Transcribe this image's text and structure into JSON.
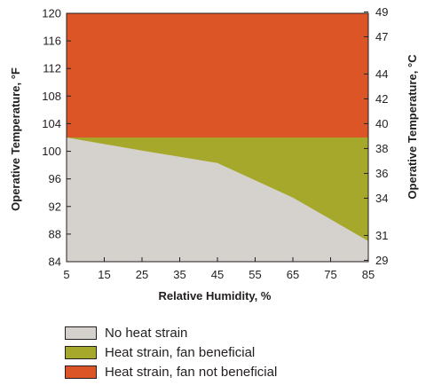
{
  "chart_data": {
    "type": "area",
    "xlabel": "Relative Humidity, %",
    "ylabel": "Operative Temperature, °F",
    "y2label": "Operative Temperature, °C",
    "xlim": [
      5,
      85
    ],
    "ylim": [
      84,
      120
    ],
    "xticks": [
      5,
      15,
      25,
      35,
      45,
      55,
      65,
      75,
      85
    ],
    "yticks": [
      84,
      88,
      92,
      96,
      100,
      104,
      108,
      112,
      116,
      120
    ],
    "y2ticks": [
      {
        "label": "29",
        "value_f": 84.2
      },
      {
        "label": "31",
        "value_f": 87.8
      },
      {
        "label": "34",
        "value_f": 93.2
      },
      {
        "label": "36",
        "value_f": 96.8
      },
      {
        "label": "38",
        "value_f": 100.4
      },
      {
        "label": "40",
        "value_f": 104.0
      },
      {
        "label": "42",
        "value_f": 107.6
      },
      {
        "label": "44",
        "value_f": 111.2
      },
      {
        "label": "47",
        "value_f": 116.6
      },
      {
        "label": "49",
        "value_f": 120.2
      }
    ],
    "grid": false,
    "legend_position": "bottom-left",
    "regions": [
      {
        "name": "No heat strain",
        "color": "#d5d2cd",
        "boundary": [
          {
            "x": 5,
            "y": 102.0
          },
          {
            "x": 25,
            "y": 100.1
          },
          {
            "x": 45,
            "y": 98.3
          },
          {
            "x": 65,
            "y": 93.3
          },
          {
            "x": 85,
            "y": 87.0
          }
        ]
      },
      {
        "name": "Heat strain, fan beneficial",
        "color": "#a6a82c",
        "upper_limit": 102.0
      },
      {
        "name": "Heat strain, fan not beneficial",
        "color": "#db5526"
      }
    ]
  }
}
